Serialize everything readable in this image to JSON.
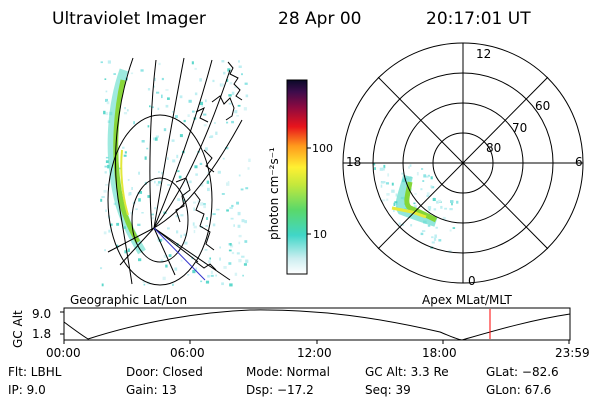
{
  "header": {
    "instrument": "Ultraviolet Imager",
    "date": "28 Apr 00",
    "time": "20:17:01 UT"
  },
  "colorbar": {
    "axis_label": "photon cm⁻²s⁻¹",
    "ticks": [
      "100",
      "10"
    ],
    "scale": "log"
  },
  "polar_plot": {
    "mlt_labels": [
      "12",
      "18",
      "6",
      "0"
    ],
    "mlat_labels": [
      "60",
      "70",
      "80"
    ]
  },
  "timeline": {
    "left_title": "Geographic Lat/Lon",
    "right_title": "Apex MLat/MLT",
    "y_axis_label": "GC Alt",
    "y_ticks": [
      "9.0",
      "1.8"
    ],
    "x_ticks": [
      "00:00",
      "06:00",
      "12:00",
      "18:00",
      "23:59"
    ],
    "current_marker_color": "#ff0000"
  },
  "info": {
    "flt": "Flt: LBHL",
    "ip": "IP: 9.0",
    "door": "Door: Closed",
    "gain": "Gain: 13",
    "mode": "Mode: Normal",
    "dsp": "Dsp: −17.2",
    "gcalt": "GC Alt: 3.3 Re",
    "seq": "Seq: 39",
    "glat": "GLat: −82.6",
    "glon": "GLon: 67.6"
  }
}
